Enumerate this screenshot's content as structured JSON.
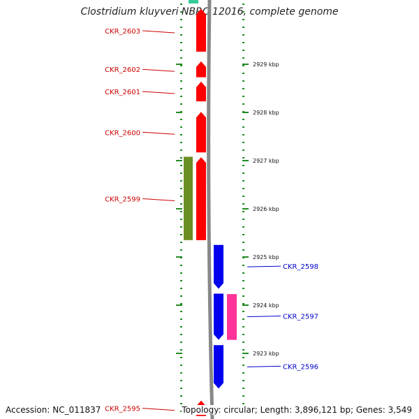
{
  "title": "Clostridium kluyveri NBRC 12016, complete genome",
  "footer": {
    "accession": "Accession: NC_011837",
    "summary": "Topology: circular; Length: 3,896,121 bp; Genes: 3,549"
  },
  "colors": {
    "forward_cds": "#ff0000",
    "reverse_cds": "#0000ee",
    "rna": "#ff3399",
    "other_feature": "#6b8e23",
    "top_partial": "#33cc99",
    "backbone": "#888888",
    "ticks": "#228b22",
    "label_forward": "#cc0000",
    "label_reverse": "#0000cc"
  },
  "scale": {
    "unit": "kbp",
    "ticks": [
      {
        "kbp": 2929,
        "label": "2929 kbp"
      },
      {
        "kbp": 2928,
        "label": "2928 kbp"
      },
      {
        "kbp": 2927,
        "label": "2927 kbp"
      },
      {
        "kbp": 2926,
        "label": "2926 kbp"
      },
      {
        "kbp": 2925,
        "label": "2925 kbp"
      },
      {
        "kbp": 2924,
        "label": "2924 kbp"
      },
      {
        "kbp": 2923,
        "label": "2923 kbp"
      }
    ]
  },
  "genes": [
    {
      "id": "CKR_2603",
      "label": "CKR_2603",
      "strand": "forward",
      "start_kbp": 2929.26,
      "end_kbp": 2930.15
    },
    {
      "id": "CKR_2602",
      "label": "CKR_2602",
      "strand": "forward",
      "start_kbp": 2928.73,
      "end_kbp": 2929.06
    },
    {
      "id": "CKR_2601",
      "label": "CKR_2601",
      "strand": "forward",
      "start_kbp": 2928.23,
      "end_kbp": 2928.64
    },
    {
      "id": "CKR_2600",
      "label": "CKR_2600",
      "strand": "forward",
      "start_kbp": 2927.17,
      "end_kbp": 2928.01
    },
    {
      "id": "CKR_2599",
      "label": "CKR_2599",
      "strand": "forward",
      "start_kbp": 2925.35,
      "end_kbp": 2927.07,
      "extra_feature": {
        "start_kbp": 2925.35,
        "end_kbp": 2927.08
      }
    },
    {
      "id": "CKR_2598",
      "label": "CKR_2598",
      "strand": "reverse",
      "start_kbp": 2924.34,
      "end_kbp": 2925.25
    },
    {
      "id": "CKR_2597",
      "label": "CKR_2597",
      "strand": "reverse",
      "start_kbp": 2923.28,
      "end_kbp": 2924.24,
      "rna_feature": {
        "start_kbp": 2923.28,
        "end_kbp": 2924.23
      }
    },
    {
      "id": "CKR_2596",
      "label": "CKR_2596",
      "strand": "reverse",
      "start_kbp": 2922.27,
      "end_kbp": 2923.17
    },
    {
      "id": "CKR_2595",
      "label": "CKR_2595",
      "strand": "forward",
      "start_kbp": 2921.7,
      "end_kbp": 2922.02
    }
  ]
}
